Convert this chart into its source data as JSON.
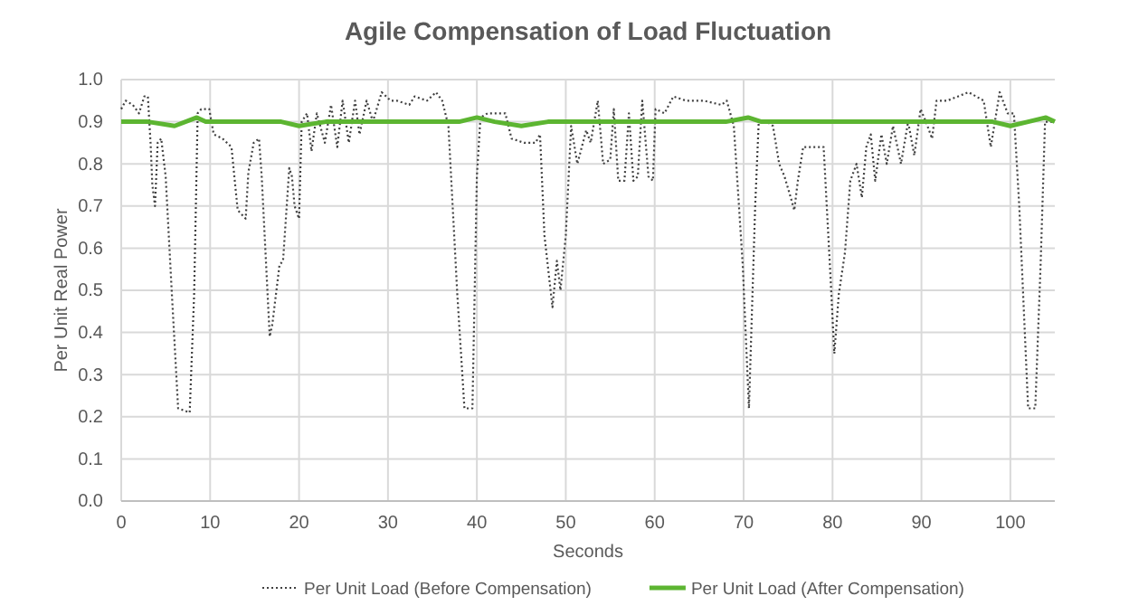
{
  "chart_data": {
    "type": "line",
    "title": "Agile Compensation of  Load Fluctuation",
    "xlabel": "Seconds",
    "ylabel": "Per Unit Real Power",
    "xlim": [
      0,
      105
    ],
    "xticks": [
      0,
      10,
      20,
      30,
      40,
      50,
      60,
      70,
      80,
      90,
      100
    ],
    "ylim": [
      0,
      1
    ],
    "yticks": [
      {
        "value": 0,
        "label": "0.0"
      },
      {
        "value": 0.1,
        "label": "0.1"
      },
      {
        "value": 0.2,
        "label": "0.2"
      },
      {
        "value": 0.3,
        "label": "0.3"
      },
      {
        "value": 0.4,
        "label": "0.4"
      },
      {
        "value": 0.5,
        "label": "0.5"
      },
      {
        "value": 0.6,
        "label": "0.6"
      },
      {
        "value": 0.7,
        "label": "0.7"
      },
      {
        "value": 0.8,
        "label": "0.8"
      },
      {
        "value": 0.9,
        "label": "0.9"
      },
      {
        "value": 1,
        "label": "1.0"
      }
    ],
    "grid": true,
    "legend": "bottom",
    "series": [
      {
        "name": "Per Unit Load (Before Compensation)",
        "color": "#404040",
        "line_style": "dotted",
        "x": [
          0,
          0.5,
          1.3,
          2,
          2.6,
          3,
          3.3,
          3.5,
          3.8,
          4.1,
          4.5,
          5,
          5.7,
          6.4,
          7.7,
          8.2,
          8.6,
          9,
          9.9,
          10.4,
          11.4,
          12.4,
          13.1,
          14,
          14.3,
          14.9,
          15.5,
          15.8,
          16.7,
          17,
          17.8,
          18.2,
          18.9,
          19.2,
          19.5,
          20,
          20.3,
          20.9,
          21.4,
          22,
          22.9,
          23.6,
          24.3,
          24.9,
          25.6,
          26.3,
          26.8,
          27.6,
          28.3,
          29.3,
          30.3,
          31,
          32.4,
          33,
          34.4,
          35.4,
          36.1,
          36.8,
          37.8,
          38.6,
          39.5,
          40,
          40.4,
          41.2,
          43.2,
          43.9,
          45.3,
          46.6,
          47.1,
          47.6,
          48.5,
          49,
          49.4,
          50,
          50.6,
          51.3,
          52.3,
          52.8,
          53.6,
          54.2,
          55,
          55.4,
          55.9,
          56.6,
          57.1,
          57.6,
          58.1,
          58.6,
          59.3,
          59.8,
          60.1,
          61.1,
          62.1,
          63.5,
          65.5,
          67.5,
          68.1,
          68.9,
          69.9,
          70.6,
          71.3,
          71.7,
          72.6,
          73.3,
          74,
          74.6,
          75.3,
          75.7,
          76.1,
          76.7,
          78.3,
          79,
          79.7,
          80.2,
          80.7,
          81.4,
          82,
          82.7,
          83.3,
          83.8,
          84.3,
          84.8,
          85.5,
          86.1,
          86.8,
          87.7,
          88.5,
          89.2,
          89.9,
          90.5,
          91.2,
          91.7,
          92.9,
          95.3,
          97,
          97.8,
          98.8,
          99.7,
          100.4,
          101,
          102,
          102.8,
          103.4,
          103.9,
          104.7
        ],
        "values": [
          0.93,
          0.95,
          0.94,
          0.92,
          0.96,
          0.96,
          0.85,
          0.75,
          0.7,
          0.85,
          0.86,
          0.77,
          0.49,
          0.22,
          0.21,
          0.49,
          0.92,
          0.93,
          0.93,
          0.87,
          0.86,
          0.84,
          0.69,
          0.67,
          0.78,
          0.85,
          0.86,
          0.77,
          0.39,
          0.42,
          0.56,
          0.57,
          0.79,
          0.77,
          0.7,
          0.67,
          0.9,
          0.92,
          0.83,
          0.92,
          0.85,
          0.94,
          0.84,
          0.95,
          0.85,
          0.95,
          0.87,
          0.95,
          0.9,
          0.97,
          0.95,
          0.95,
          0.94,
          0.96,
          0.95,
          0.97,
          0.95,
          0.89,
          0.49,
          0.22,
          0.22,
          0.77,
          0.91,
          0.92,
          0.92,
          0.86,
          0.85,
          0.85,
          0.87,
          0.63,
          0.46,
          0.57,
          0.5,
          0.63,
          0.89,
          0.8,
          0.88,
          0.85,
          0.95,
          0.8,
          0.81,
          0.93,
          0.76,
          0.76,
          0.92,
          0.76,
          0.77,
          0.95,
          0.77,
          0.76,
          0.93,
          0.92,
          0.96,
          0.95,
          0.95,
          0.94,
          0.95,
          0.89,
          0.56,
          0.22,
          0.7,
          0.9,
          0.9,
          0.89,
          0.8,
          0.77,
          0.72,
          0.69,
          0.76,
          0.84,
          0.84,
          0.84,
          0.56,
          0.35,
          0.49,
          0.59,
          0.76,
          0.8,
          0.72,
          0.84,
          0.87,
          0.76,
          0.87,
          0.8,
          0.89,
          0.8,
          0.9,
          0.82,
          0.93,
          0.9,
          0.86,
          0.95,
          0.95,
          0.97,
          0.95,
          0.84,
          0.97,
          0.92,
          0.92,
          0.7,
          0.22,
          0.22,
          0.56,
          0.9,
          0.9
        ]
      },
      {
        "name": "Per Unit Load (After Compensation)",
        "color": "#5cb531",
        "line_style": "solid",
        "x": [
          0,
          3,
          6,
          8.5,
          9.5,
          12,
          15,
          18,
          20,
          23,
          26,
          29,
          32,
          35,
          38,
          40,
          42,
          45,
          48,
          50,
          53,
          56,
          59,
          62,
          65,
          68,
          70.5,
          72,
          75,
          78,
          80,
          83,
          86,
          89,
          92,
          95,
          98,
          100,
          102,
          104,
          105
        ],
        "values": [
          0.9,
          0.9,
          0.89,
          0.91,
          0.9,
          0.9,
          0.9,
          0.9,
          0.89,
          0.9,
          0.9,
          0.9,
          0.9,
          0.9,
          0.9,
          0.91,
          0.9,
          0.89,
          0.9,
          0.9,
          0.9,
          0.9,
          0.9,
          0.9,
          0.9,
          0.9,
          0.91,
          0.9,
          0.9,
          0.9,
          0.9,
          0.9,
          0.9,
          0.9,
          0.9,
          0.9,
          0.9,
          0.89,
          0.9,
          0.91,
          0.9
        ]
      }
    ]
  }
}
